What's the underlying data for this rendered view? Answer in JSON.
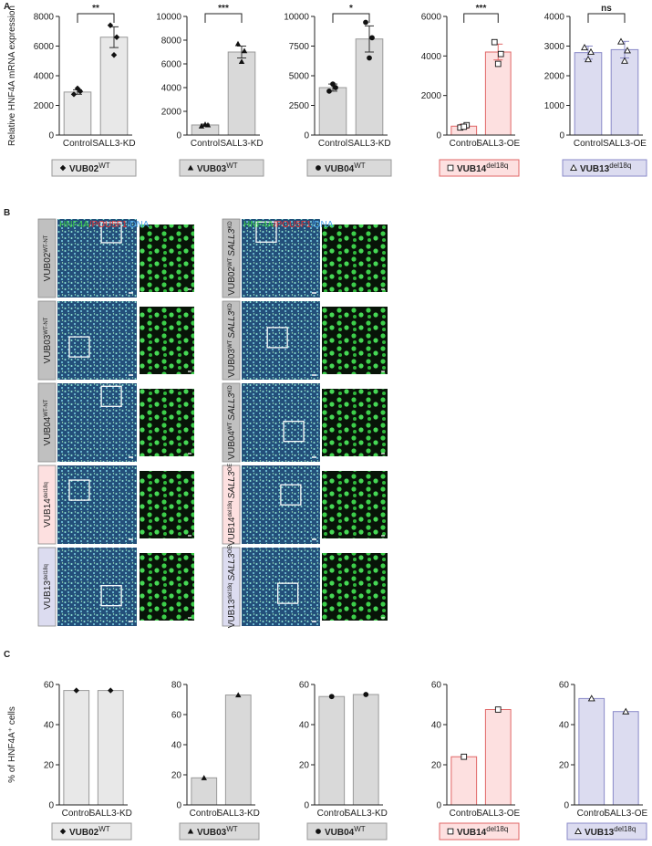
{
  "panel_labels": [
    "A",
    "B",
    "C"
  ],
  "chart_data": [
    {
      "type": "bar",
      "ylabel": "Relative HNF4A mRNA expression",
      "categories": [
        "Control",
        "SALL3-KD"
      ],
      "values": [
        2900,
        6600
      ],
      "errors": [
        150,
        700
      ],
      "points": [
        [
          2750,
          2950,
          3150
        ],
        [
          7400,
          6600,
          5400
        ]
      ],
      "significance": "**",
      "ylim": [
        0,
        8000
      ],
      "yticks": [
        0,
        2000,
        4000,
        6000,
        8000
      ],
      "color": "#e8e8e8",
      "edgecolor": "#999999",
      "marker": "diamond",
      "cell_line": {
        "name": "VUB02",
        "sup": "WT"
      }
    },
    {
      "type": "bar",
      "categories": [
        "Control",
        "SALL3-KD"
      ],
      "values": [
        850,
        7000
      ],
      "errors": [
        70,
        500
      ],
      "points": [
        [
          750,
          850,
          900
        ],
        [
          7700,
          7100,
          6200
        ]
      ],
      "significance": "***",
      "ylim": [
        0,
        10000
      ],
      "yticks": [
        0,
        2000,
        4000,
        6000,
        8000,
        10000
      ],
      "color": "#d9d9d9",
      "edgecolor": "#999999",
      "marker": "triangle",
      "cell_line": {
        "name": "VUB03",
        "sup": "WT"
      }
    },
    {
      "type": "bar",
      "categories": [
        "Control",
        "SALL3-KD"
      ],
      "values": [
        4000,
        8100
      ],
      "errors": [
        300,
        1100
      ],
      "points": [
        [
          3700,
          4000,
          4300
        ],
        [
          9500,
          8200,
          6500
        ]
      ],
      "significance": "*",
      "ylim": [
        0,
        10000
      ],
      "yticks": [
        0,
        2500,
        5000,
        7500,
        10000
      ],
      "color": "#d9d9d9",
      "edgecolor": "#999999",
      "marker": "circle",
      "cell_line": {
        "name": "VUB04",
        "sup": "WT"
      }
    },
    {
      "type": "bar",
      "categories": [
        "Control",
        "SALL3-OE"
      ],
      "values": [
        450,
        4200
      ],
      "errors": [
        100,
        400
      ],
      "points": [
        [
          380,
          500,
          420
        ],
        [
          4700,
          4100,
          3600
        ]
      ],
      "significance": "***",
      "ylim": [
        0,
        6000
      ],
      "yticks": [
        0,
        2000,
        4000,
        6000
      ],
      "color": "#fde0e0",
      "edgecolor": "#e06666",
      "marker": "square",
      "cell_line": {
        "name": "VUB14",
        "sup": "del18q"
      }
    },
    {
      "type": "bar",
      "categories": [
        "Control",
        "SALL3-OE"
      ],
      "values": [
        2780,
        2880
      ],
      "errors": [
        220,
        280
      ],
      "points": [
        [
          2950,
          2800,
          2550
        ],
        [
          3150,
          2850,
          2500
        ]
      ],
      "significance": "ns",
      "ylim": [
        0,
        4000
      ],
      "yticks": [
        0,
        1000,
        2000,
        3000,
        4000
      ],
      "color": "#dcdcf0",
      "edgecolor": "#8a8ac8",
      "marker": "triangle-open",
      "cell_line": {
        "name": "VUB13",
        "sup": "del18q"
      }
    },
    {
      "type": "bar",
      "ylabel": "% of HNF4A⁺ cells",
      "categories": [
        "Control",
        "SALL3-KD"
      ],
      "values": [
        57,
        57
      ],
      "ylim": [
        0,
        60
      ],
      "yticks": [
        0,
        20,
        40,
        60
      ],
      "color": "#e8e8e8",
      "edgecolor": "#999999",
      "marker": "diamond",
      "cell_line": {
        "name": "VUB02",
        "sup": "WT"
      }
    },
    {
      "type": "bar",
      "categories": [
        "Control",
        "SALL3-KD"
      ],
      "values": [
        18,
        73
      ],
      "ylim": [
        0,
        80
      ],
      "yticks": [
        0,
        20,
        40,
        60,
        80
      ],
      "color": "#d9d9d9",
      "edgecolor": "#999999",
      "marker": "triangle",
      "cell_line": {
        "name": "VUB03",
        "sup": "WT"
      }
    },
    {
      "type": "bar",
      "categories": [
        "Control",
        "SALL3-KD"
      ],
      "values": [
        54,
        55
      ],
      "ylim": [
        0,
        60
      ],
      "yticks": [
        0,
        20,
        40,
        60
      ],
      "color": "#d9d9d9",
      "edgecolor": "#999999",
      "marker": "circle",
      "cell_line": {
        "name": "VUB04",
        "sup": "WT"
      }
    },
    {
      "type": "bar",
      "categories": [
        "Control",
        "SALL3-OE"
      ],
      "values": [
        24,
        47.5
      ],
      "ylim": [
        0,
        60
      ],
      "yticks": [
        0,
        20,
        40,
        60
      ],
      "color": "#fde0e0",
      "edgecolor": "#e06666",
      "marker": "square",
      "cell_line": {
        "name": "VUB14",
        "sup": "del18q"
      }
    },
    {
      "type": "bar",
      "categories": [
        "Control",
        "SALL3-OE"
      ],
      "values": [
        53,
        46.5
      ],
      "ylim": [
        0,
        60
      ],
      "yticks": [
        0,
        20,
        40,
        60
      ],
      "color": "#dcdcf0",
      "edgecolor": "#8a8ac8",
      "marker": "triangle-open",
      "cell_line": {
        "name": "VUB13",
        "sup": "del18q"
      }
    }
  ],
  "micrographs": {
    "legend": [
      "HNF4A",
      "/POU5F1",
      "/DNA"
    ],
    "rows": [
      {
        "left": {
          "name": "VUB02",
          "sup": "WT-NT"
        },
        "right": {
          "name": "VUB02",
          "sup": "WT",
          "gene": "SALL3",
          "gene_sup": "KD"
        },
        "frame_color": "#c0c0c0"
      },
      {
        "left": {
          "name": "VUB03",
          "sup": "WT-NT"
        },
        "right": {
          "name": "VUB03",
          "sup": "WT",
          "gene": "SALL3",
          "gene_sup": "KD"
        },
        "frame_color": "#c0c0c0"
      },
      {
        "left": {
          "name": "VUB04",
          "sup": "WT-NT"
        },
        "right": {
          "name": "VUB04",
          "sup": "WT",
          "gene": "SALL3",
          "gene_sup": "KD"
        },
        "frame_color": "#c0c0c0"
      },
      {
        "left": {
          "name": "VUB14",
          "sup": "del18q"
        },
        "right": {
          "name": "VUB14",
          "sup": "del18q",
          "gene": "SALL3",
          "gene_sup": "OE"
        },
        "frame_color": "#fde0e0"
      },
      {
        "left": {
          "name": "VUB13",
          "sup": "del18q"
        },
        "right": {
          "name": "VUB13",
          "sup": "del18q",
          "gene": "SALL3",
          "gene_sup": "OE"
        },
        "frame_color": "#dcdcf0"
      }
    ]
  }
}
